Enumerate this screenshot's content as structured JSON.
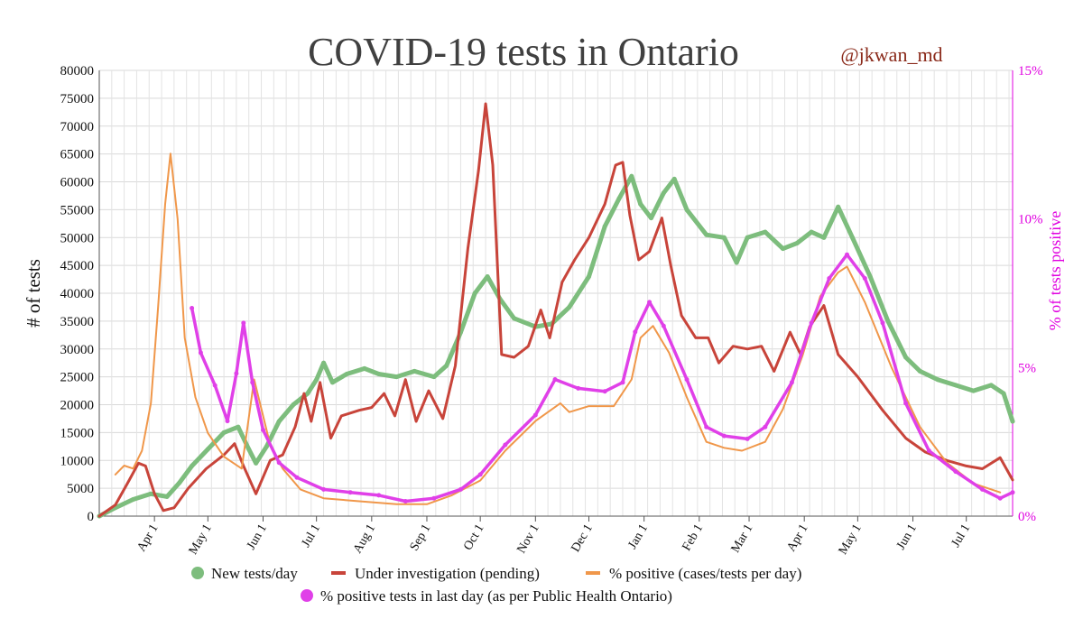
{
  "chart_data": {
    "type": "line",
    "title": "COVID-19 tests in Ontario",
    "credit": "@jkwan_md",
    "ylabel_left": "# of tests",
    "ylabel_right": "% of tests positive",
    "ylim_left": [
      0,
      80000
    ],
    "ylim_right": [
      0,
      15
    ],
    "y_ticks_left": [
      "0",
      "5000",
      "10000",
      "15000",
      "20000",
      "25000",
      "30000",
      "35000",
      "40000",
      "45000",
      "50000",
      "55000",
      "60000",
      "65000",
      "70000",
      "75000",
      "80000"
    ],
    "y_ticks_right": [
      "0%",
      "5%",
      "10%",
      "15%"
    ],
    "x_range": [
      "2020-03-01",
      "2021-07-27"
    ],
    "x_ticks": [
      {
        "label": "Apr 1",
        "date": "2020-04-01"
      },
      {
        "label": "May 1",
        "date": "2020-05-01"
      },
      {
        "label": "Jun 1",
        "date": "2020-06-01"
      },
      {
        "label": "Jul 1",
        "date": "2020-07-01"
      },
      {
        "label": "Aug 1",
        "date": "2020-08-01"
      },
      {
        "label": "Sep 1",
        "date": "2020-09-01"
      },
      {
        "label": "Oct 1",
        "date": "2020-10-01"
      },
      {
        "label": "Nov 1",
        "date": "2020-11-01"
      },
      {
        "label": "Dec 1",
        "date": "2020-12-01"
      },
      {
        "label": "Jan 1",
        "date": "2021-01-01"
      },
      {
        "label": "Feb 1",
        "date": "2021-02-01"
      },
      {
        "label": "Mar 1",
        "date": "2021-03-01"
      },
      {
        "label": "Apr 1",
        "date": "2021-04-01"
      },
      {
        "label": "May 1",
        "date": "2021-05-01"
      },
      {
        "label": "Jun 1",
        "date": "2021-06-01"
      },
      {
        "label": "Jul 1",
        "date": "2021-07-01"
      }
    ],
    "grid": true,
    "legend_position": "bottom",
    "series": [
      {
        "name": "New tests/day",
        "color": "#7dbd7d",
        "axis": "left",
        "style": "points + smoothed line",
        "points": [
          [
            "2020-03-01",
            0
          ],
          [
            "2020-03-10",
            1500
          ],
          [
            "2020-03-20",
            3000
          ],
          [
            "2020-03-30",
            4000
          ],
          [
            "2020-04-08",
            3500
          ],
          [
            "2020-04-15",
            6000
          ],
          [
            "2020-04-22",
            9000
          ],
          [
            "2020-05-01",
            12000
          ],
          [
            "2020-05-10",
            15000
          ],
          [
            "2020-05-18",
            16000
          ],
          [
            "2020-05-24",
            12000
          ],
          [
            "2020-05-28",
            9500
          ],
          [
            "2020-06-03",
            12500
          ],
          [
            "2020-06-10",
            17000
          ],
          [
            "2020-06-18",
            20000
          ],
          [
            "2020-06-26",
            22000
          ],
          [
            "2020-07-01",
            24500
          ],
          [
            "2020-07-05",
            27500
          ],
          [
            "2020-07-10",
            24000
          ],
          [
            "2020-07-18",
            25500
          ],
          [
            "2020-07-28",
            26500
          ],
          [
            "2020-08-05",
            25500
          ],
          [
            "2020-08-15",
            25000
          ],
          [
            "2020-08-25",
            26000
          ],
          [
            "2020-09-05",
            25000
          ],
          [
            "2020-09-12",
            27000
          ],
          [
            "2020-09-20",
            33000
          ],
          [
            "2020-09-28",
            40000
          ],
          [
            "2020-10-05",
            43000
          ],
          [
            "2020-10-12",
            39000
          ],
          [
            "2020-10-20",
            35500
          ],
          [
            "2020-11-01",
            34000
          ],
          [
            "2020-11-10",
            34500
          ],
          [
            "2020-11-20",
            37500
          ],
          [
            "2020-12-01",
            43000
          ],
          [
            "2020-12-10",
            52000
          ],
          [
            "2020-12-18",
            57000
          ],
          [
            "2020-12-25",
            61000
          ],
          [
            "2020-12-30",
            56000
          ],
          [
            "2021-01-05",
            53500
          ],
          [
            "2021-01-12",
            58000
          ],
          [
            "2021-01-18",
            60500
          ],
          [
            "2021-01-25",
            55000
          ],
          [
            "2021-02-05",
            50500
          ],
          [
            "2021-02-15",
            50000
          ],
          [
            "2021-02-22",
            45500
          ],
          [
            "2021-02-28",
            50000
          ],
          [
            "2021-03-10",
            51000
          ],
          [
            "2021-03-20",
            48000
          ],
          [
            "2021-03-28",
            49000
          ],
          [
            "2021-04-05",
            51000
          ],
          [
            "2021-04-12",
            50000
          ],
          [
            "2021-04-20",
            55500
          ],
          [
            "2021-04-28",
            50000
          ],
          [
            "2021-05-08",
            43000
          ],
          [
            "2021-05-18",
            35000
          ],
          [
            "2021-05-28",
            28500
          ],
          [
            "2021-06-05",
            26000
          ],
          [
            "2021-06-15",
            24500
          ],
          [
            "2021-06-25",
            23500
          ],
          [
            "2021-07-05",
            22500
          ],
          [
            "2021-07-15",
            23500
          ],
          [
            "2021-07-22",
            22000
          ],
          [
            "2021-07-27",
            17000
          ]
        ]
      },
      {
        "name": "Under investigation (pending)",
        "color": "#c8443a",
        "axis": "left",
        "style": "line",
        "points": [
          [
            "2020-03-01",
            0
          ],
          [
            "2020-03-10",
            2000
          ],
          [
            "2020-03-17",
            6000
          ],
          [
            "2020-03-23",
            9500
          ],
          [
            "2020-03-27",
            9000
          ],
          [
            "2020-04-01",
            4000
          ],
          [
            "2020-04-06",
            1000
          ],
          [
            "2020-04-12",
            1500
          ],
          [
            "2020-04-20",
            5000
          ],
          [
            "2020-04-30",
            8500
          ],
          [
            "2020-05-10",
            11000
          ],
          [
            "2020-05-16",
            13000
          ],
          [
            "2020-05-21",
            9000
          ],
          [
            "2020-05-28",
            4000
          ],
          [
            "2020-06-05",
            10000
          ],
          [
            "2020-06-12",
            11000
          ],
          [
            "2020-06-19",
            16000
          ],
          [
            "2020-06-24",
            22000
          ],
          [
            "2020-06-28",
            17000
          ],
          [
            "2020-07-03",
            24000
          ],
          [
            "2020-07-09",
            14000
          ],
          [
            "2020-07-15",
            18000
          ],
          [
            "2020-07-25",
            19000
          ],
          [
            "2020-08-01",
            19500
          ],
          [
            "2020-08-08",
            22000
          ],
          [
            "2020-08-14",
            18000
          ],
          [
            "2020-08-20",
            24500
          ],
          [
            "2020-08-26",
            17000
          ],
          [
            "2020-09-02",
            22500
          ],
          [
            "2020-09-10",
            17500
          ],
          [
            "2020-09-17",
            27000
          ],
          [
            "2020-09-24",
            48000
          ],
          [
            "2020-09-30",
            62000
          ],
          [
            "2020-10-04",
            74000
          ],
          [
            "2020-10-08",
            63000
          ],
          [
            "2020-10-13",
            29000
          ],
          [
            "2020-10-20",
            28500
          ],
          [
            "2020-10-28",
            30500
          ],
          [
            "2020-11-04",
            37000
          ],
          [
            "2020-11-09",
            32000
          ],
          [
            "2020-11-16",
            42000
          ],
          [
            "2020-11-23",
            46000
          ],
          [
            "2020-12-01",
            50000
          ],
          [
            "2020-12-10",
            56000
          ],
          [
            "2020-12-16",
            63000
          ],
          [
            "2020-12-20",
            63500
          ],
          [
            "2020-12-24",
            54000
          ],
          [
            "2020-12-29",
            46000
          ],
          [
            "2021-01-04",
            47500
          ],
          [
            "2021-01-11",
            53500
          ],
          [
            "2021-01-16",
            45000
          ],
          [
            "2021-01-22",
            36000
          ],
          [
            "2021-01-30",
            32000
          ],
          [
            "2021-02-06",
            32000
          ],
          [
            "2021-02-12",
            27500
          ],
          [
            "2021-02-20",
            30500
          ],
          [
            "2021-02-28",
            30000
          ],
          [
            "2021-03-08",
            30500
          ],
          [
            "2021-03-15",
            26000
          ],
          [
            "2021-03-24",
            33000
          ],
          [
            "2021-03-30",
            29000
          ],
          [
            "2021-04-04",
            34000
          ],
          [
            "2021-04-12",
            37800
          ],
          [
            "2021-04-20",
            29000
          ],
          [
            "2021-05-01",
            25000
          ],
          [
            "2021-05-15",
            19000
          ],
          [
            "2021-05-28",
            14000
          ],
          [
            "2021-06-08",
            11500
          ],
          [
            "2021-06-20",
            10000
          ],
          [
            "2021-07-01",
            9000
          ],
          [
            "2021-07-10",
            8500
          ],
          [
            "2021-07-20",
            10500
          ],
          [
            "2021-07-27",
            6500
          ]
        ]
      },
      {
        "name": "% positive (cases/tests per day)",
        "color": "#f0974a",
        "axis": "right",
        "style": "line",
        "points": [
          [
            "2020-03-10",
            1.4
          ],
          [
            "2020-03-15",
            1.7
          ],
          [
            "2020-03-20",
            1.6
          ],
          [
            "2020-03-25",
            2.2
          ],
          [
            "2020-03-30",
            3.8
          ],
          [
            "2020-04-03",
            7.0
          ],
          [
            "2020-04-07",
            10.5
          ],
          [
            "2020-04-10",
            12.2
          ],
          [
            "2020-04-14",
            10.0
          ],
          [
            "2020-04-18",
            6.0
          ],
          [
            "2020-04-24",
            4.0
          ],
          [
            "2020-05-01",
            2.8
          ],
          [
            "2020-05-10",
            2.0
          ],
          [
            "2020-05-20",
            1.6
          ],
          [
            "2020-05-27",
            4.6
          ],
          [
            "2020-06-05",
            2.4
          ],
          [
            "2020-06-12",
            1.6
          ],
          [
            "2020-06-22",
            0.9
          ],
          [
            "2020-07-05",
            0.6
          ],
          [
            "2020-07-25",
            0.5
          ],
          [
            "2020-08-15",
            0.4
          ],
          [
            "2020-09-01",
            0.4
          ],
          [
            "2020-09-15",
            0.7
          ],
          [
            "2020-10-01",
            1.2
          ],
          [
            "2020-10-15",
            2.2
          ],
          [
            "2020-11-01",
            3.2
          ],
          [
            "2020-11-15",
            3.8
          ],
          [
            "2020-11-20",
            3.5
          ],
          [
            "2020-12-01",
            3.7
          ],
          [
            "2020-12-15",
            3.7
          ],
          [
            "2020-12-25",
            4.6
          ],
          [
            "2020-12-30",
            6.0
          ],
          [
            "2021-01-06",
            6.4
          ],
          [
            "2021-01-15",
            5.5
          ],
          [
            "2021-01-25",
            4.0
          ],
          [
            "2021-02-05",
            2.5
          ],
          [
            "2021-02-15",
            2.3
          ],
          [
            "2021-02-25",
            2.2
          ],
          [
            "2021-03-10",
            2.5
          ],
          [
            "2021-03-20",
            3.6
          ],
          [
            "2021-03-31",
            5.4
          ],
          [
            "2021-04-10",
            7.4
          ],
          [
            "2021-04-20",
            8.2
          ],
          [
            "2021-04-25",
            8.4
          ],
          [
            "2021-05-05",
            7.2
          ],
          [
            "2021-05-20",
            5.0
          ],
          [
            "2021-06-05",
            3.0
          ],
          [
            "2021-06-20",
            1.8
          ],
          [
            "2021-07-05",
            1.1
          ],
          [
            "2021-07-20",
            0.8
          ]
        ]
      },
      {
        "name": "% positive tests in last day (as per Public Health Ontario)",
        "color": "#e040e8",
        "axis": "right",
        "style": "points + smoothed line",
        "points": [
          [
            "2020-04-22",
            7.0
          ],
          [
            "2020-04-27",
            5.5
          ],
          [
            "2020-05-05",
            4.4
          ],
          [
            "2020-05-12",
            3.2
          ],
          [
            "2020-05-17",
            4.8
          ],
          [
            "2020-05-21",
            6.5
          ],
          [
            "2020-05-26",
            4.5
          ],
          [
            "2020-06-01",
            2.9
          ],
          [
            "2020-06-10",
            1.8
          ],
          [
            "2020-06-20",
            1.3
          ],
          [
            "2020-07-05",
            0.9
          ],
          [
            "2020-07-20",
            0.8
          ],
          [
            "2020-08-05",
            0.7
          ],
          [
            "2020-08-20",
            0.5
          ],
          [
            "2020-09-05",
            0.6
          ],
          [
            "2020-09-20",
            0.9
          ],
          [
            "2020-10-01",
            1.4
          ],
          [
            "2020-10-15",
            2.4
          ],
          [
            "2020-11-01",
            3.4
          ],
          [
            "2020-11-12",
            4.6
          ],
          [
            "2020-11-25",
            4.3
          ],
          [
            "2020-12-10",
            4.2
          ],
          [
            "2020-12-20",
            4.5
          ],
          [
            "2020-12-27",
            6.2
          ],
          [
            "2021-01-04",
            7.2
          ],
          [
            "2021-01-12",
            6.4
          ],
          [
            "2021-01-25",
            4.6
          ],
          [
            "2021-02-05",
            3.0
          ],
          [
            "2021-02-15",
            2.7
          ],
          [
            "2021-02-28",
            2.6
          ],
          [
            "2021-03-10",
            3.0
          ],
          [
            "2021-03-25",
            4.5
          ],
          [
            "2021-04-05",
            6.5
          ],
          [
            "2021-04-15",
            8.0
          ],
          [
            "2021-04-25",
            8.8
          ],
          [
            "2021-05-05",
            8.0
          ],
          [
            "2021-05-15",
            6.5
          ],
          [
            "2021-05-28",
            3.8
          ],
          [
            "2021-06-10",
            2.2
          ],
          [
            "2021-06-25",
            1.5
          ],
          [
            "2021-07-10",
            0.9
          ],
          [
            "2021-07-20",
            0.6
          ],
          [
            "2021-07-27",
            0.8
          ]
        ]
      }
    ]
  }
}
